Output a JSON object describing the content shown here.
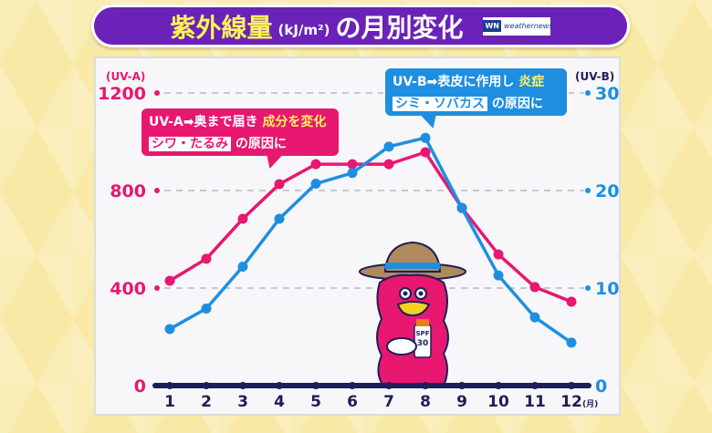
{
  "title": {
    "main": "紫外線量",
    "unit": "(kJ/m²)",
    "rest": "の月別変化",
    "logo_text": "weathernews",
    "logo_mark": "WN"
  },
  "colors": {
    "uva": "#e8176f",
    "uvb": "#1e8fe0",
    "axis": "#1e1e5a",
    "title_bg": "#6a22b8"
  },
  "annotations": {
    "uva": {
      "line1_a": "UV-A➡奥まで届き ",
      "line1_b": "成分を変化",
      "line2_a": "シワ・たるみ",
      "line2_b": " の原因に"
    },
    "uvb": {
      "line1_a": "UV-B➡表皮に作用し ",
      "line1_b": "炎症",
      "line2_a": "シミ・ソバカス",
      "line2_b": " の原因に"
    }
  },
  "mascot": {
    "label_1": "SPF",
    "label_2": "30"
  },
  "chart_data": {
    "type": "line",
    "title": "紫外線量(kJ/m²)の月別変化",
    "categories": [
      "1",
      "2",
      "3",
      "4",
      "5",
      "6",
      "7",
      "8",
      "9",
      "10",
      "11",
      "12"
    ],
    "x_unit": "(月)",
    "left_axis": {
      "label": "(UV-A)",
      "range": [
        0,
        1200
      ],
      "ticks": [
        "0",
        "400",
        "800",
        "1200"
      ]
    },
    "right_axis": {
      "label": "(UV-B)",
      "range": [
        0,
        30
      ],
      "ticks": [
        "0",
        "10",
        "20",
        "30"
      ]
    },
    "series": [
      {
        "name": "UV-A",
        "axis": "left",
        "values": [
          430,
          520,
          684,
          826,
          908,
          908,
          908,
          957,
          729,
          538,
          404,
          344
        ]
      },
      {
        "name": "UV-B",
        "axis": "right",
        "values": [
          5.8,
          7.9,
          12.2,
          17.1,
          20.7,
          21.8,
          24.5,
          25.4,
          18.2,
          11.3,
          7.0,
          4.4
        ]
      }
    ],
    "grid": true
  }
}
